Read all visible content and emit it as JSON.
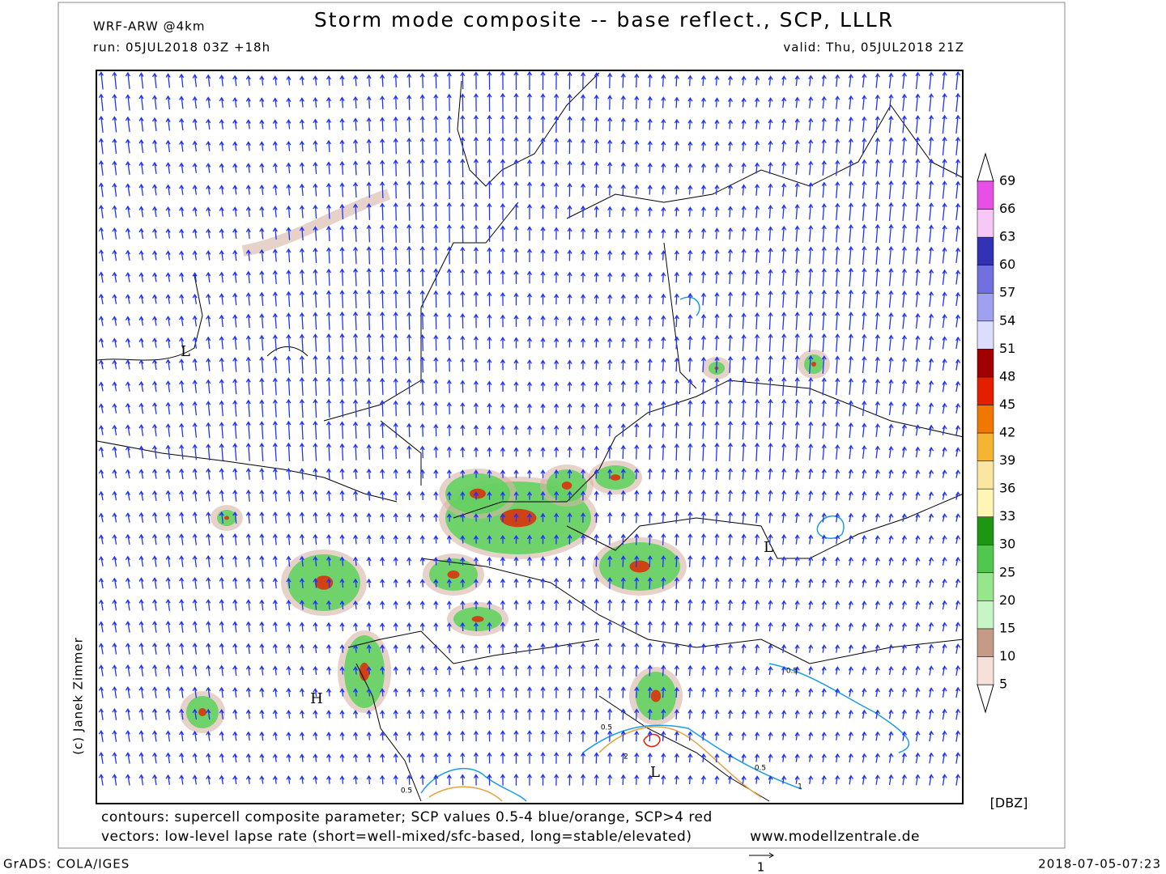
{
  "header": {
    "model": "WRF-ARW @4km",
    "title": "Storm mode composite -- base reflect., SCP, LLLR",
    "run": "run: 05JUL2018 03Z +18h",
    "valid": "valid: Thu, 05JUL2018 21Z"
  },
  "map": {
    "pressure_labels": [
      "L",
      "H",
      "L",
      "L"
    ],
    "contour_labels": [
      "0.5",
      "0.5",
      "2",
      "0.5",
      "0.5",
      "1"
    ]
  },
  "credit": "(c) Janek Zimmer",
  "colorbar": {
    "unit": "[DBZ]",
    "levels": [
      5,
      10,
      15,
      20,
      25,
      30,
      33,
      36,
      39,
      42,
      45,
      48,
      51,
      54,
      57,
      60,
      63,
      66,
      69
    ],
    "colors": [
      "#f5e1d9",
      "#c39b87",
      "#c8f5c8",
      "#96e68c",
      "#50c850",
      "#1e9614",
      "#fff5b4",
      "#fae6a0",
      "#f5b432",
      "#f07800",
      "#e61e00",
      "#a00000",
      "#dcdcff",
      "#a0a0f0",
      "#7070e0",
      "#3232b4",
      "#f5c8f5",
      "#e650e6",
      "#b400b4"
    ]
  },
  "footer": {
    "contours": "contours: supercell composite parameter; SCP values 0.5-4 blue/orange, SCP>4 red",
    "vectors": "vectors: low-level lapse rate (short=well-mixed/sfc-based, long=stable/elevated)",
    "site": "www.modellzentrale.de",
    "grads": "GrADS: COLA/IGES",
    "timestamp": "2018-07-05-07:23",
    "vector_key": "1"
  }
}
